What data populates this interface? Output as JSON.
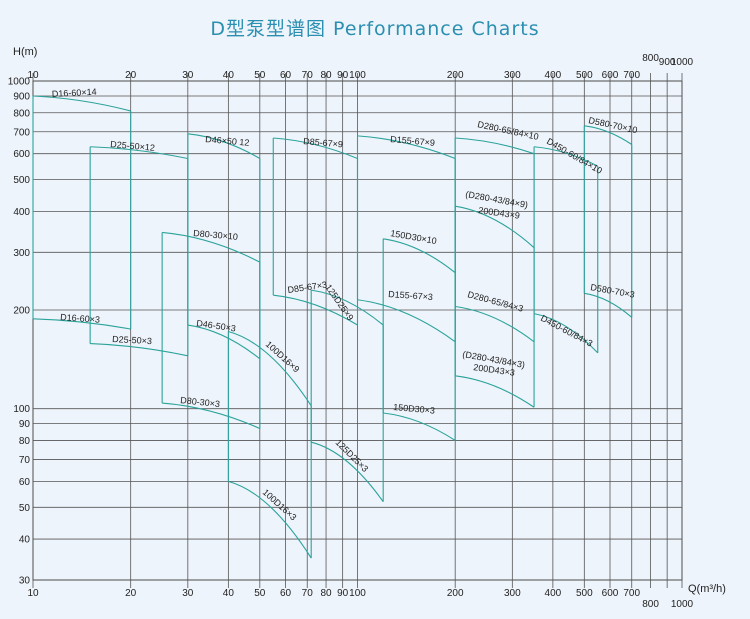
{
  "title": "D型泵型谱图  Performance Charts",
  "chart_data": {
    "type": "line",
    "title": "D型泵型谱图  Performance Charts",
    "ylabel": "H(m)",
    "xlabel": "Q(m³/h)",
    "xscale": "log",
    "yscale": "log",
    "xlim": [
      10,
      1000
    ],
    "ylim": [
      30,
      1000
    ],
    "x_ticks_major_top": [
      "10",
      "20",
      "30",
      "40",
      "50",
      "60",
      "70",
      "80",
      "90",
      "100",
      "200",
      "300",
      "400",
      "500",
      "600",
      "700"
    ],
    "x_ticks_extra_top": [
      "800",
      "900",
      "1000"
    ],
    "x_ticks_bottom": [
      "10",
      "20",
      "30",
      "40",
      "50",
      "60",
      "70",
      "80",
      "90",
      "100",
      "200",
      "300",
      "400",
      "500",
      "600",
      "700"
    ],
    "x_ticks_extra_bottom": [
      "800",
      "1000"
    ],
    "y_ticks": [
      "30",
      "40",
      "50",
      "60",
      "70",
      "80",
      "90",
      "100",
      "200",
      "300",
      "400",
      "500",
      "600",
      "700",
      "800",
      "900",
      "1000"
    ],
    "regions": [
      {
        "top": "D16-60×14",
        "bottom": "D16-60×3",
        "qmin": 10,
        "qmax": 20,
        "htop": [
          900,
          810
        ],
        "hbot": [
          188,
          175
        ]
      },
      {
        "top": "D25-50×12",
        "bottom": "D25-50×3",
        "qmin": 15,
        "qmax": 30,
        "htop": [
          630,
          580
        ],
        "hbot": [
          158,
          145
        ]
      },
      {
        "top": "D46-50×12",
        "bottom": "D46-50×3",
        "qmin": 30,
        "qmax": 50,
        "htop": [
          690,
          580
        ],
        "hbot": [
          180,
          142
        ]
      },
      {
        "top": "D80-30×10",
        "bottom": "D80-30×3",
        "qmin": 25,
        "qmax": 50,
        "htop": [
          345,
          280
        ],
        "hbot": [
          104,
          87
        ]
      },
      {
        "top": "D85-67×9",
        "bottom": "D85-67×3",
        "qmin": 55,
        "qmax": 100,
        "htop": [
          670,
          580
        ],
        "hbot": [
          222,
          180
        ]
      },
      {
        "top": "100D16×9",
        "bottom": "100D16×3",
        "qmin": 40,
        "qmax": 72,
        "htop": [
          172,
          102
        ],
        "hbot": [
          60,
          35
        ]
      },
      {
        "top": "125D25×9",
        "bottom": "125D25×3",
        "qmin": 72,
        "qmax": 120,
        "htop": [
          230,
          180
        ],
        "hbot": [
          79,
          52
        ]
      },
      {
        "top": "D155-67×9",
        "bottom": "D155-67×3",
        "qmin": 100,
        "qmax": 200,
        "htop": [
          680,
          580
        ],
        "hbot": [
          215,
          160
        ]
      },
      {
        "top": "150D30×10",
        "bottom": "150D30×3",
        "qmin": 120,
        "qmax": 200,
        "htop": [
          330,
          260
        ],
        "hbot": [
          97,
          80
        ]
      },
      {
        "top": "D280-65/84×10",
        "bottom": "D280-65/84×3",
        "qmin": 200,
        "qmax": 350,
        "htop": [
          670,
          600
        ],
        "hbot": [
          205,
          160
        ]
      },
      {
        "top": "(D280-43/84×9) 200D43×9",
        "bottom": "(D280-43/84×3) 200D43×3",
        "qmin": 200,
        "qmax": 350,
        "htop": [
          415,
          310
        ],
        "hbot": [
          126,
          101
        ]
      },
      {
        "top": "D450-60/84×10",
        "bottom": "D450-60/84×3",
        "qmin": 350,
        "qmax": 550,
        "htop": [
          630,
          550
        ],
        "hbot": [
          195,
          148
        ]
      },
      {
        "top": "D580-70×10",
        "bottom": "D580-70×3",
        "qmin": 500,
        "qmax": 700,
        "htop": [
          730,
          640
        ],
        "hbot": [
          225,
          190
        ]
      }
    ],
    "curve_labels": [
      {
        "text": "D16-60×14"
      },
      {
        "text": "D16-60×3"
      },
      {
        "text": "D25-50×12"
      },
      {
        "text": "D25-50×3"
      },
      {
        "text": "D46×50  12"
      },
      {
        "text": "D46-50×3"
      },
      {
        "text": "D80-30×10"
      },
      {
        "text": "D80-30×3"
      },
      {
        "text": "D85-67×9"
      },
      {
        "text": "D85-67×3"
      },
      {
        "text": "100D16×9"
      },
      {
        "text": "100D16×3"
      },
      {
        "text": "125D25×9"
      },
      {
        "text": "125D25×3"
      },
      {
        "text": "D155-67×9"
      },
      {
        "text": "D155-67×3"
      },
      {
        "text": "150D30×10"
      },
      {
        "text": "150D30×3"
      },
      {
        "text": "D280-65/84×10"
      },
      {
        "text": "D280-65/84×3"
      },
      {
        "text": "(D280-43/84×9)"
      },
      {
        "text": "200D43×9"
      },
      {
        "text": "(D280-43/84×3)"
      },
      {
        "text": "200D43×3"
      },
      {
        "text": "D450-60/84×10"
      },
      {
        "text": "D450-60/84×3"
      },
      {
        "text": "D580-70×10"
      },
      {
        "text": "D580-70×3"
      }
    ],
    "grid": true
  }
}
